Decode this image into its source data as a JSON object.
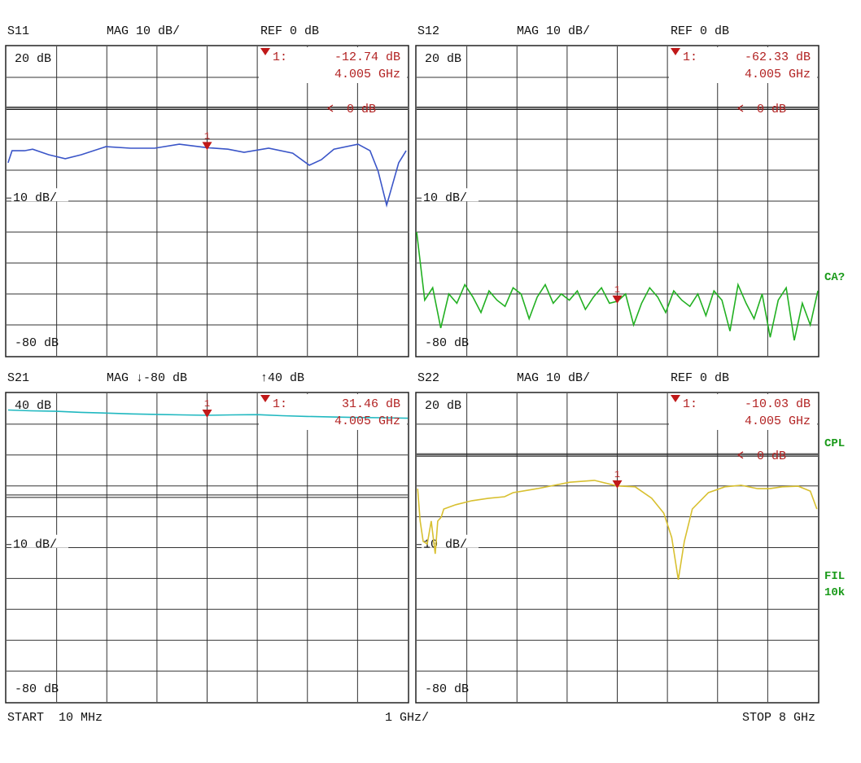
{
  "chart_data": [
    {
      "type": "line",
      "title": "S11",
      "format": "MAG 10 dB/",
      "reference": "REF 0 dB",
      "scale_label": "10 dB/",
      "xlim": [
        0.01,
        8
      ],
      "ylim": [
        -80,
        20
      ],
      "yticks": [
        {
          "value": 20,
          "label": "20 dB"
        },
        {
          "value": -80,
          "label": "-80 dB"
        }
      ],
      "ref_line": {
        "value": 0,
        "label": "0 dB"
      },
      "series": [
        {
          "color": "#3a55c8",
          "x": [
            0.04,
            0.12,
            0.37,
            0.53,
            0.85,
            1.18,
            1.5,
            1.99,
            2.48,
            2.96,
            3.45,
            4.0,
            4.42,
            4.74,
            5.23,
            5.71,
            6.04,
            6.28,
            6.53,
            7.01,
            7.25,
            7.41,
            7.58,
            7.66,
            7.82,
            7.97
          ],
          "values": [
            -17.6,
            -13.7,
            -13.7,
            -13.2,
            -15.0,
            -16.3,
            -15.0,
            -12.4,
            -12.9,
            -12.9,
            -11.6,
            -12.7,
            -13.2,
            -14.2,
            -12.9,
            -14.5,
            -18.4,
            -16.6,
            -13.2,
            -11.6,
            -13.7,
            -20.3,
            -31.3,
            -26.8,
            -17.6,
            -13.7
          ]
        }
      ],
      "marker": {
        "number": "1",
        "prefix": "1:",
        "x": 4.005,
        "y": -12.74,
        "value_label": "-12.74 dB",
        "x_label": "4.005 GHz"
      }
    },
    {
      "type": "line",
      "title": "S12",
      "format": "MAG 10 dB/",
      "reference": "REF 0 dB",
      "scale_label": "10 dB/",
      "xlim": [
        0.01,
        8
      ],
      "ylim": [
        -80,
        20
      ],
      "yticks": [
        {
          "value": 20,
          "label": "20 dB"
        },
        {
          "value": -80,
          "label": "-80 dB"
        }
      ],
      "ref_line": {
        "value": 0,
        "label": "0 dB"
      },
      "series": [
        {
          "color": "#22b022",
          "x": [
            0.01,
            0.17,
            0.33,
            0.49,
            0.65,
            0.81,
            0.97,
            1.13,
            1.29,
            1.45,
            1.61,
            1.77,
            1.93,
            2.09,
            2.25,
            2.41,
            2.57,
            2.73,
            2.89,
            3.05,
            3.21,
            3.37,
            3.53,
            3.69,
            3.85,
            4.01,
            4.17,
            4.33,
            4.49,
            4.65,
            4.81,
            4.97,
            5.13,
            5.29,
            5.45,
            5.61,
            5.77,
            5.93,
            6.09,
            6.25,
            6.41,
            6.57,
            6.73,
            6.89,
            7.05,
            7.21,
            7.37,
            7.53,
            7.69,
            7.85,
            8.0
          ],
          "values": [
            -40,
            -62,
            -58,
            -71,
            -60,
            -63,
            -57,
            -61,
            -66,
            -59,
            -62,
            -64,
            -58,
            -60,
            -68,
            -61,
            -57,
            -63,
            -60,
            -62,
            -59,
            -65,
            -61,
            -58,
            -63,
            -62.33,
            -60,
            -70,
            -63,
            -58,
            -61,
            -66,
            -59,
            -62,
            -64,
            -60,
            -67,
            -59,
            -62,
            -72,
            -57,
            -63,
            -68,
            -60,
            -74,
            -62,
            -58,
            -75,
            -63,
            -70,
            -59
          ]
        }
      ],
      "marker": {
        "number": "1",
        "prefix": "1:",
        "x": 4.005,
        "y": -62.33,
        "value_label": "-62.33 dB",
        "x_label": "4.005 GHz"
      }
    },
    {
      "type": "line",
      "title": "S21",
      "format": "MAG ↓-80 dB",
      "reference": "↑40 dB",
      "scale_label": "10 dB/",
      "xlim": [
        0.01,
        8
      ],
      "ylim": [
        -80,
        40
      ],
      "yticks": [
        {
          "value": 40,
          "label": "40 dB"
        },
        {
          "value": -80,
          "label": "-80 dB"
        }
      ],
      "ref_line": {
        "value": 0
      },
      "series": [
        {
          "color": "#20b8c0",
          "x": [
            0.04,
            0.5,
            1,
            1.5,
            2,
            2.5,
            3,
            3.5,
            4.005,
            4.5,
            5,
            5.5,
            6,
            6.5,
            7,
            7.5,
            8
          ],
          "values": [
            33.5,
            33.2,
            33.0,
            32.6,
            32.3,
            32.0,
            31.8,
            31.6,
            31.46,
            31.6,
            31.7,
            31.3,
            31.0,
            30.8,
            30.6,
            30.5,
            30.3
          ]
        }
      ],
      "marker": {
        "number": "1",
        "prefix": "1:",
        "x": 4.005,
        "y": 31.46,
        "value_label": "31.46 dB",
        "x_label": "4.005 GHz"
      }
    },
    {
      "type": "line",
      "title": "S22",
      "format": "MAG 10 dB/",
      "reference": "REF 0 dB",
      "scale_label": "10 dB/",
      "xlim": [
        0.01,
        8
      ],
      "ylim": [
        -80,
        20
      ],
      "yticks": [
        {
          "value": 20,
          "label": "20 dB"
        },
        {
          "value": -80,
          "label": "-80 dB"
        }
      ],
      "ref_line": {
        "value": 0,
        "label": "0 dB"
      },
      "series": [
        {
          "color": "#d8c030",
          "x": [
            0.03,
            0.08,
            0.14,
            0.22,
            0.3,
            0.38,
            0.43,
            0.5,
            0.55,
            0.79,
            1.11,
            1.44,
            1.76,
            1.93,
            2.41,
            3.06,
            3.55,
            4.005,
            4.36,
            4.69,
            4.93,
            5.09,
            5.22,
            5.34,
            5.5,
            5.82,
            6.15,
            6.47,
            6.8,
            7.04,
            7.29,
            7.61,
            7.85,
            7.98
          ],
          "values": [
            -10.9,
            -21.4,
            -28.0,
            -28.8,
            -21.4,
            -32.0,
            -21.4,
            -20.1,
            -17.5,
            -16.1,
            -14.8,
            -14.0,
            -13.5,
            -12.2,
            -10.9,
            -8.8,
            -8.2,
            -10.03,
            -10.3,
            -14.0,
            -18.8,
            -26.7,
            -40.4,
            -28.0,
            -17.5,
            -12.2,
            -10.3,
            -9.8,
            -10.9,
            -10.9,
            -10.3,
            -10.1,
            -11.7,
            -17.5
          ]
        }
      ],
      "marker": {
        "number": "1",
        "prefix": "1:",
        "x": 4.005,
        "y": -10.03,
        "value_label": "-10.03 dB",
        "x_label": "4.005 GHz"
      }
    }
  ],
  "footer": {
    "start": "START  10 MHz",
    "span": "1 GHz/",
    "stop": "STOP 8 GHz"
  },
  "side_labels": [
    "CA?",
    "CPL",
    "FIL",
    "10k"
  ]
}
